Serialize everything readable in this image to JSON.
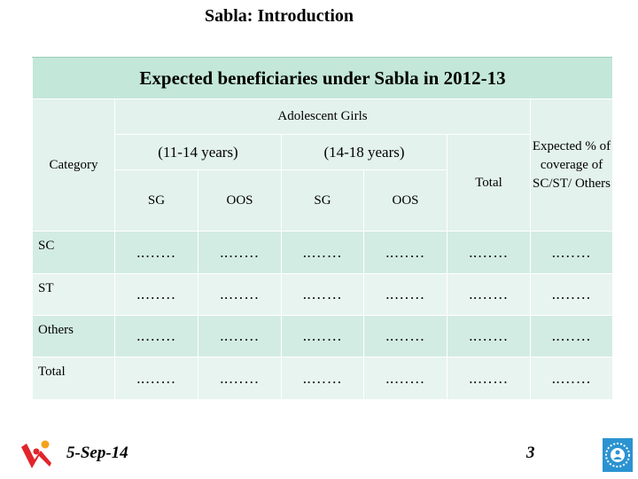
{
  "slide": {
    "title": "Sabla: Introduction",
    "date": "5-Sep-14",
    "page_number": "3"
  },
  "table": {
    "caption": "Expected beneficiaries under Sabla in 2012-13",
    "header": {
      "category": "Category",
      "adolescent_girls": "Adolescent Girls",
      "expected_coverage": "Expected % of coverage of SC/ST/ Others",
      "age_11_14": "(11-14 years)",
      "age_14_18": "(14-18 years)",
      "total": "Total",
      "sg_1": "SG",
      "oos_1": "OOS",
      "sg_2": "SG",
      "oos_2": "OOS"
    },
    "rows": [
      {
        "category": "SC",
        "cells": [
          "..……",
          "..……",
          "..……",
          "..……",
          "..……",
          "..……"
        ]
      },
      {
        "category": "ST",
        "cells": [
          "..……",
          "..……",
          "..……",
          "..……",
          "..……",
          "..……"
        ]
      },
      {
        "category": "Others",
        "cells": [
          "..……",
          "..……",
          "..……",
          "..……",
          "..……",
          "..……"
        ]
      },
      {
        "category": "Total",
        "cells": [
          "..……",
          "..……",
          "..……",
          "..……",
          "..……",
          "..……"
        ]
      }
    ]
  },
  "logos": {
    "left": "people-logo-icon",
    "right": "ministry-emblem-icon"
  },
  "colors": {
    "caption_bg": "#c3e7d9",
    "header_bg": "#e3f2ed",
    "row_light": "#e8f4f0",
    "row_mid": "#d3ece3",
    "logo_red": "#e1252b",
    "logo_orange": "#f5a21c",
    "emblem_blue": "#2b93d1"
  }
}
